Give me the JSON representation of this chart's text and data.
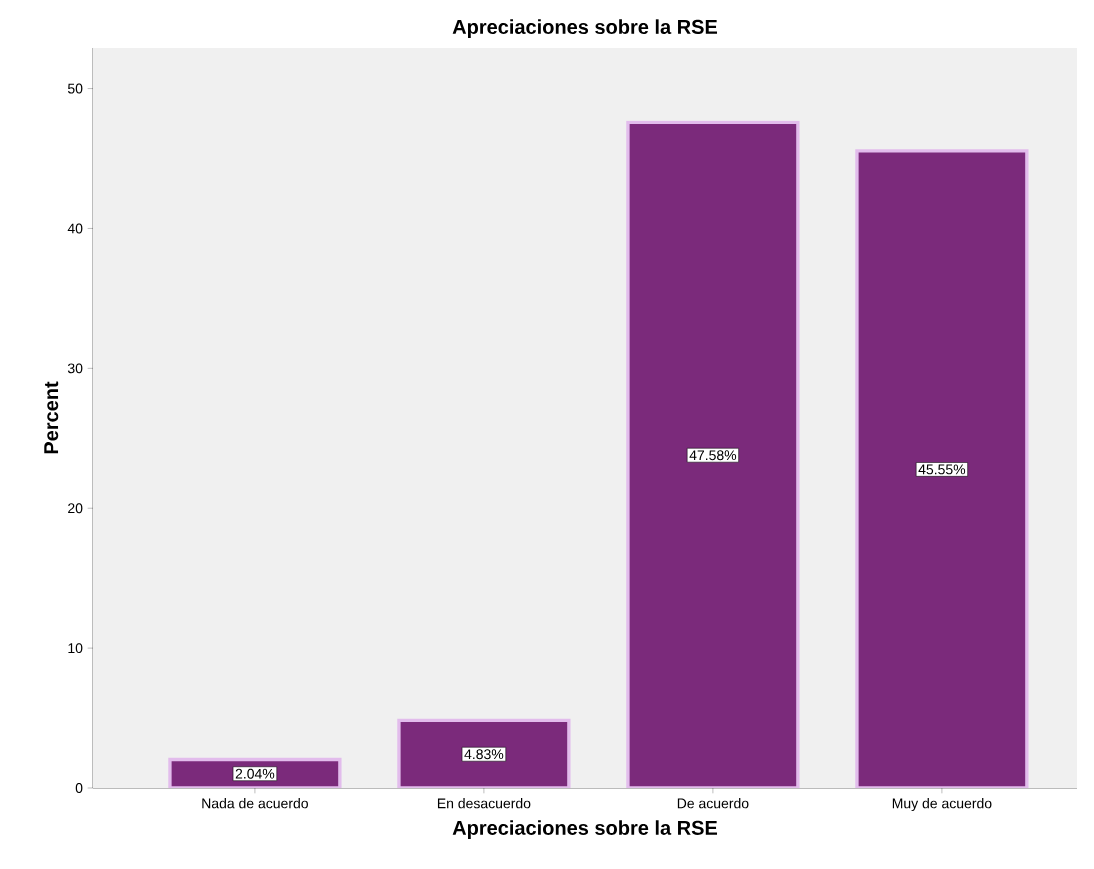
{
  "chart_data": {
    "type": "bar",
    "title": "Apreciaciones sobre la RSE",
    "xlabel": "Apreciaciones sobre la RSE",
    "ylabel": "Percent",
    "categories": [
      "Nada de acuerdo",
      "En desacuerdo",
      "De acuerdo",
      "Muy de acuerdo"
    ],
    "values": [
      2.04,
      4.83,
      47.58,
      45.55
    ],
    "value_labels": [
      "2.04%",
      "4.83%",
      "47.58%",
      "45.55%"
    ],
    "color": "#7b2a7b",
    "ylim": [
      0,
      52.9
    ],
    "yticks": [
      0,
      10,
      20,
      30,
      40,
      50
    ],
    "grid": false
  }
}
